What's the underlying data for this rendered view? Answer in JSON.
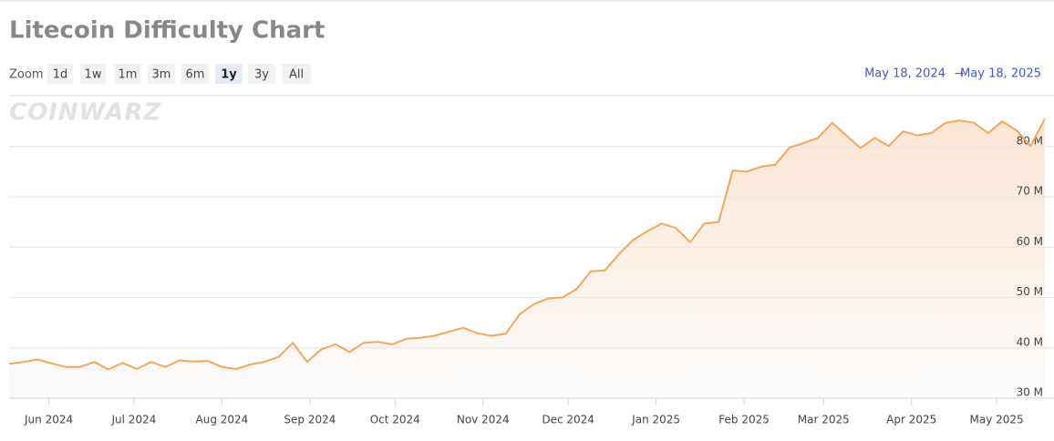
{
  "chart_data": {
    "type": "area",
    "title": "Litecoin Difficulty Chart",
    "watermark": "COINWARZ",
    "zoom": {
      "label": "Zoom",
      "buttons": [
        "1d",
        "1w",
        "1m",
        "3m",
        "6m",
        "1y",
        "3y",
        "All"
      ],
      "selected": "1y"
    },
    "range": {
      "start": "May 18, 2024",
      "arrow": "→",
      "end": "May 18, 2025"
    },
    "color": "#f3a75a",
    "values": [
      36.8,
      37.2,
      37.7,
      36.9,
      36.2,
      36.2,
      37.2,
      35.7,
      37.0,
      35.8,
      37.2,
      36.2,
      37.5,
      37.3,
      37.4,
      36.2,
      35.8,
      36.7,
      37.2,
      38.2,
      41.0,
      37.2,
      39.7,
      40.7,
      39.2,
      41.0,
      41.2,
      40.7,
      41.8,
      42.0,
      42.4,
      43.2,
      44.0,
      42.9,
      42.4,
      42.8,
      46.7,
      48.7,
      49.8,
      50.0,
      51.7,
      55.2,
      55.4,
      58.7,
      61.5,
      63.2,
      64.7,
      63.8,
      61.0,
      64.7,
      65.0,
      75.2,
      75.0,
      76.0,
      76.4,
      79.8,
      80.7,
      81.7,
      84.7,
      82.2,
      79.7,
      81.7,
      80.1,
      83.0,
      82.2,
      82.7,
      84.7,
      85.2,
      84.7,
      82.7,
      85.0,
      83.2,
      80.1,
      85.5
    ],
    "ylim": [
      30,
      90.1
    ],
    "yticks": [
      {
        "value": 30,
        "label": "30 M"
      },
      {
        "value": 40,
        "label": "40 M"
      },
      {
        "value": 50,
        "label": "50 M"
      },
      {
        "value": 60,
        "label": "60 M"
      },
      {
        "value": 70,
        "label": "70 M"
      },
      {
        "value": 80,
        "label": "80 M"
      }
    ],
    "xticks": [
      {
        "value": "2024-06-01",
        "label": "Jun 2024"
      },
      {
        "value": "2024-07-01",
        "label": "Jul 2024"
      },
      {
        "value": "2024-08-01",
        "label": "Aug 2024"
      },
      {
        "value": "2024-09-01",
        "label": "Sep 2024"
      },
      {
        "value": "2024-10-01",
        "label": "Oct 2024"
      },
      {
        "value": "2024-11-01",
        "label": "Nov 2024"
      },
      {
        "value": "2024-12-01",
        "label": "Dec 2024"
      },
      {
        "value": "2025-01-01",
        "label": "Jan 2025"
      },
      {
        "value": "2025-02-01",
        "label": "Feb 2025"
      },
      {
        "value": "2025-03-01",
        "label": "Mar 2025"
      },
      {
        "value": "2025-04-01",
        "label": "Apr 2025"
      },
      {
        "value": "2025-05-01",
        "label": "May 2025"
      }
    ],
    "grid": true
  }
}
